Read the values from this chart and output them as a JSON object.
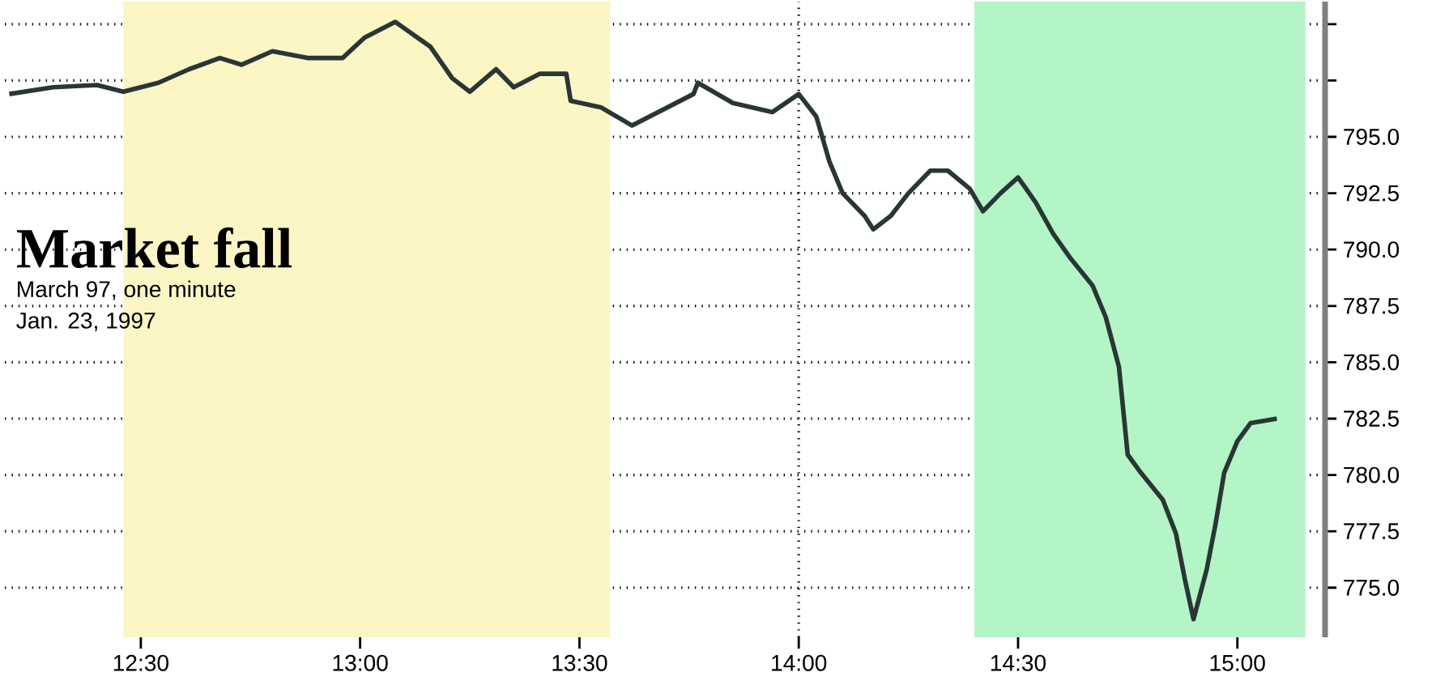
{
  "chart_data": {
    "type": "line",
    "title": "Market fall",
    "subtitle": "March 97, one minute",
    "annotations": [
      "Jan. 23, 1997"
    ],
    "x": [
      12.2,
      12.3,
      12.4,
      12.46,
      12.54,
      12.61,
      12.68,
      12.73,
      12.8,
      12.88,
      12.96,
      13.01,
      13.08,
      13.16,
      13.21,
      13.25,
      13.31,
      13.35,
      13.41,
      13.47,
      13.48,
      13.55,
      13.62,
      13.68,
      13.76,
      13.77,
      13.85,
      13.94,
      14.0,
      14.04,
      14.07,
      14.1,
      14.15,
      14.17,
      14.21,
      14.25,
      14.3,
      14.34,
      14.39,
      14.42,
      14.46,
      14.5,
      14.54,
      14.58,
      14.62,
      14.67,
      14.7,
      14.73,
      14.75,
      14.78,
      14.83,
      14.86,
      14.88,
      14.9,
      14.93,
      14.95,
      14.97,
      15.0,
      15.03,
      15.09
    ],
    "series": [
      {
        "color": "#2a3636",
        "values": [
          796.9,
          797.2,
          797.3,
          797.0,
          797.4,
          798.0,
          798.5,
          798.2,
          798.8,
          798.5,
          798.5,
          799.4,
          800.1,
          799.0,
          797.6,
          797.0,
          798.0,
          797.2,
          797.8,
          797.8,
          796.6,
          796.3,
          795.5,
          796.1,
          796.9,
          797.4,
          796.5,
          796.1,
          796.9,
          795.9,
          793.9,
          792.5,
          791.5,
          790.9,
          791.5,
          792.5,
          793.5,
          793.5,
          792.7,
          791.7,
          792.5,
          793.2,
          792.1,
          790.7,
          789.6,
          788.4,
          787.0,
          784.8,
          780.9,
          780.1,
          778.9,
          777.4,
          775.4,
          773.6,
          775.8,
          777.8,
          780.1,
          781.5,
          782.3,
          782.5
        ]
      }
    ],
    "xlim": [
      12.19,
      15.2
    ],
    "ylim": [
      772.8,
      801
    ],
    "xticks": [
      {
        "value": 12.5,
        "label": "12:30"
      },
      {
        "value": 13,
        "label": "13:00"
      },
      {
        "value": 13.5,
        "label": "13:30"
      },
      {
        "value": 14,
        "label": "14:00"
      },
      {
        "value": 14.5,
        "label": "14:30"
      },
      {
        "value": 15,
        "label": "15:00"
      }
    ],
    "yticks": [
      {
        "value": 775,
        "label": "775.0"
      },
      {
        "value": 777.5,
        "label": "777.5"
      },
      {
        "value": 780,
        "label": "780.0"
      },
      {
        "value": 782.5,
        "label": "782.5"
      },
      {
        "value": 785,
        "label": "785.0"
      },
      {
        "value": 787.5,
        "label": "787.5"
      },
      {
        "value": 790,
        "label": "790.0"
      },
      {
        "value": 792.5,
        "label": "792.5"
      },
      {
        "value": 795,
        "label": "795.0"
      },
      {
        "value": 797.5,
        "label": null
      },
      {
        "value": 800,
        "label": null
      }
    ],
    "bands": [
      {
        "axis": "x",
        "from": 12.46,
        "to": 13.57,
        "color": "#fbf6c4"
      },
      {
        "axis": "x",
        "from": 14.4,
        "to": 15.155,
        "color": "#b4f5c8"
      }
    ],
    "grid": true,
    "marker": "none",
    "line_style": "solid"
  }
}
